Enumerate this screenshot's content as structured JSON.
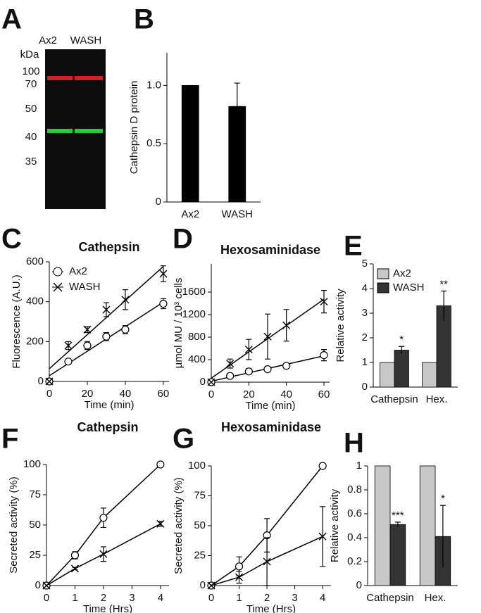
{
  "blot": {
    "panel": "A",
    "unit": "kDa",
    "lanes": [
      "Ax2",
      "WASH"
    ],
    "markers": [
      100,
      70,
      50,
      40,
      35
    ]
  },
  "chart_data": [
    {
      "panel": "B",
      "type": "bar",
      "ylabel": "Cathepsin D protein",
      "categories": [
        "Ax2",
        "WASH"
      ],
      "series": [
        {
          "name": "Cathepsin D",
          "color": "#000000",
          "values": [
            1.0,
            0.82
          ],
          "errors": [
            0,
            0.2
          ]
        }
      ],
      "ylim": [
        0,
        1.28
      ],
      "yticks": [
        0,
        0.5,
        {
          "value": 1,
          "label": "1.0"
        }
      ]
    },
    {
      "panel": "C",
      "type": "line",
      "title": "Cathepsin",
      "xlabel": "Time (min)",
      "ylabel": "Fluorescence (A.U.)",
      "trendline": true,
      "legend": "upper left",
      "x": [
        0,
        10,
        20,
        30,
        40,
        60
      ],
      "series": [
        {
          "name": "Ax2",
          "marker": "circle",
          "color": "#000000",
          "values": [
            0,
            100,
            180,
            225,
            260,
            390
          ],
          "errors": [
            0,
            10,
            20,
            20,
            20,
            25
          ]
        },
        {
          "name": "WASH",
          "marker": "cross",
          "color": "#000000",
          "values": [
            0,
            180,
            260,
            360,
            410,
            540
          ],
          "errors": [
            0,
            20,
            15,
            35,
            50,
            40
          ]
        }
      ],
      "xlim": [
        0,
        63
      ],
      "xticks": [
        0,
        20,
        40,
        60
      ],
      "ylim": [
        0,
        600
      ],
      "yticks": [
        0,
        200,
        400,
        600
      ]
    },
    {
      "panel": "D",
      "type": "line",
      "title": "Hexosaminidase",
      "xlabel": "Time (min)",
      "ylabel": "µmol MU / 10³ cells",
      "trendline": true,
      "x": [
        0,
        10,
        20,
        30,
        40,
        60
      ],
      "series": [
        {
          "name": "Ax2",
          "marker": "circle",
          "color": "#000000",
          "values": [
            0,
            110,
            190,
            230,
            290,
            480
          ],
          "errors": [
            0,
            30,
            50,
            50,
            30,
            100
          ]
        },
        {
          "name": "WASH",
          "marker": "cross",
          "color": "#000000",
          "values": [
            0,
            330,
            580,
            810,
            1010,
            1430
          ],
          "errors": [
            0,
            80,
            180,
            400,
            280,
            200
          ]
        }
      ],
      "xlim": [
        0,
        63
      ],
      "xticks": [
        0,
        20,
        40,
        60
      ],
      "ylim": [
        0,
        2100
      ],
      "yticks": [
        0,
        400,
        800,
        1200,
        1600
      ]
    },
    {
      "panel": "E",
      "type": "bar",
      "ylabel": "Relative activity",
      "legend": "upper left",
      "categories": [
        "Cathepsin",
        "Hex."
      ],
      "series": [
        {
          "name": "Ax2",
          "color": "#c8c8c8",
          "values": [
            1,
            1
          ],
          "errors": [
            0,
            0
          ]
        },
        {
          "name": "WASH",
          "color": "#333333",
          "values": [
            1.5,
            3.3
          ],
          "errors": [
            0.15,
            0.6
          ],
          "annotations": [
            "*",
            "**"
          ]
        }
      ],
      "ylim": [
        0,
        5
      ],
      "yticks": [
        0,
        1,
        2,
        3,
        4,
        5
      ]
    },
    {
      "panel": "F",
      "type": "line",
      "title": "Cathepsin",
      "xlabel": "Time (Hrs)",
      "ylabel": "Secreted activity (%)",
      "trendline": false,
      "x": [
        0,
        1,
        2,
        4
      ],
      "series": [
        {
          "name": "Ax2",
          "marker": "circle",
          "color": "#000000",
          "values": [
            0,
            25,
            56,
            100
          ],
          "errors": [
            0,
            3,
            8,
            0
          ]
        },
        {
          "name": "WASH",
          "marker": "cross",
          "color": "#000000",
          "values": [
            0,
            14,
            26,
            51
          ],
          "errors": [
            0,
            1,
            6,
            2
          ]
        }
      ],
      "xlim": [
        0,
        4.3
      ],
      "xticks": [
        0,
        1,
        2,
        3,
        4
      ],
      "ylim": [
        0,
        100
      ],
      "yticks": [
        0,
        25,
        50,
        75,
        100
      ]
    },
    {
      "panel": "G",
      "type": "line",
      "title": "Hexosaminidase",
      "xlabel": "Time (Hrs)",
      "ylabel": "Secreted activity (%)",
      "trendline": false,
      "x": [
        0,
        1,
        2,
        4
      ],
      "series": [
        {
          "name": "Ax2",
          "marker": "circle",
          "color": "#000000",
          "values": [
            0,
            16,
            42,
            100
          ],
          "errors": [
            0,
            8,
            14,
            0
          ]
        },
        {
          "name": "WASH",
          "marker": "cross",
          "color": "#000000",
          "values": [
            0,
            7,
            20,
            41
          ],
          "errors": [
            0,
            5,
            20,
            25
          ]
        }
      ],
      "xlim": [
        0,
        4.3
      ],
      "xticks": [
        0,
        1,
        2,
        3,
        4
      ],
      "ylim": [
        0,
        100
      ],
      "yticks": [
        0,
        25,
        50,
        75,
        100
      ]
    },
    {
      "panel": "H",
      "type": "bar",
      "ylabel": "Relative activity",
      "categories": [
        "Cathepsin",
        "Hex."
      ],
      "series": [
        {
          "name": "Ax2",
          "color": "#c8c8c8",
          "values": [
            1,
            1
          ],
          "errors": [
            0,
            0
          ]
        },
        {
          "name": "WASH",
          "color": "#333333",
          "values": [
            0.51,
            0.41
          ],
          "errors": [
            0.02,
            0.26
          ],
          "annotations": [
            "***",
            "*"
          ]
        }
      ],
      "ylim": [
        0,
        1
      ],
      "yticks": [
        0,
        0.2,
        0.4,
        0.6,
        0.8,
        1
      ]
    }
  ]
}
